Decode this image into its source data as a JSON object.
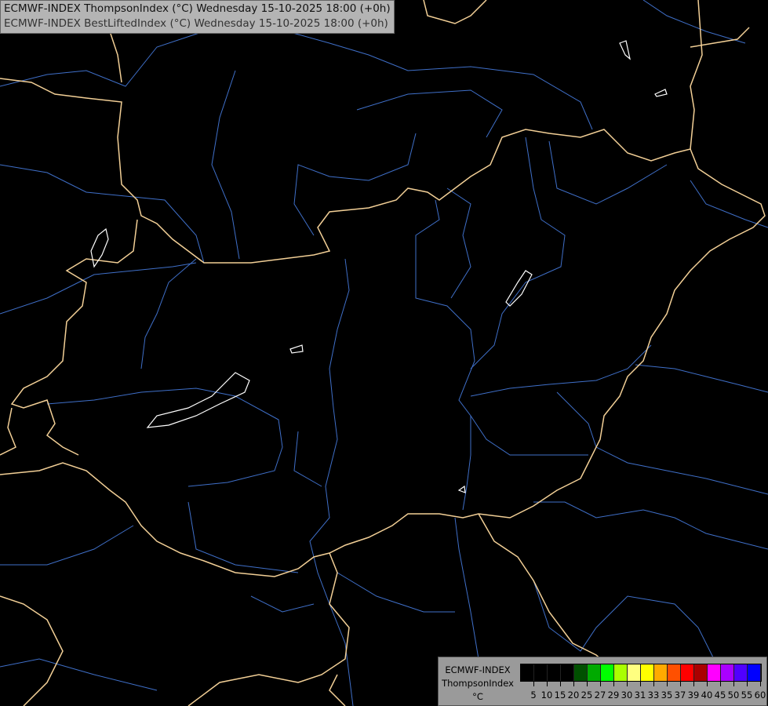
{
  "title": {
    "line1": "ECMWF-INDEX ThompsonIndex (°C) Wednesday 15-10-2025 18:00 (+0h)",
    "line2": "ECMWF-INDEX BestLiftedIndex (°C) Wednesday 15-10-2025 18:00 (+0h)"
  },
  "legend": {
    "model": "ECMWF-INDEX",
    "parameter": "ThompsonIndex",
    "unit": "°C",
    "labels": [
      "5",
      "10",
      "15",
      "20",
      "25",
      "27",
      "29",
      "30",
      "31",
      "33",
      "35",
      "37",
      "39",
      "40",
      "45",
      "50",
      "55",
      "60"
    ],
    "colors": [
      "#000000",
      "#000000",
      "#000000",
      "#000000",
      "#005000",
      "#00aa00",
      "#00ff00",
      "#aaff00",
      "#ffff80",
      "#ffff00",
      "#ffaa00",
      "#ff5000",
      "#ff0000",
      "#aa0000",
      "#ff00ff",
      "#aa00ff",
      "#5000ff",
      "#0000ff"
    ]
  },
  "map_colors": {
    "background": "#000000",
    "borders": "#f2cf96",
    "rivers": "#3f6fc8",
    "lakes": "#ffffff"
  }
}
